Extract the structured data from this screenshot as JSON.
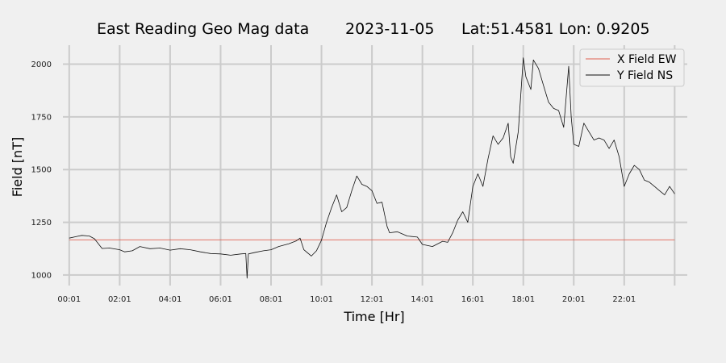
{
  "chart_data": {
    "type": "line",
    "title": {
      "station": "East Reading Geo Mag data",
      "date": "2023-11-05",
      "location": "Lat:51.4581  Lon: 0.9205"
    },
    "xlabel": "Time  [Hr]",
    "ylabel": "Field  [nT]",
    "xlim": [
      -0.25,
      24.5
    ],
    "ylim": [
      950,
      2090
    ],
    "x_ticks": [
      {
        "value": 0,
        "label": "00:01"
      },
      {
        "value": 2,
        "label": "02:01"
      },
      {
        "value": 4,
        "label": "04:01"
      },
      {
        "value": 6,
        "label": "06:01"
      },
      {
        "value": 8,
        "label": "08:01"
      },
      {
        "value": 10,
        "label": "10:01"
      },
      {
        "value": 12,
        "label": "12:01"
      },
      {
        "value": 14,
        "label": "14:01"
      },
      {
        "value": 16,
        "label": "16:01"
      },
      {
        "value": 18,
        "label": "18:01"
      },
      {
        "value": 20,
        "label": "20:01"
      },
      {
        "value": 22,
        "label": "22:01"
      }
    ],
    "x_gridlines": [
      0,
      2,
      4,
      6,
      8,
      10,
      12,
      14,
      16,
      18,
      20,
      22,
      24
    ],
    "y_ticks": [
      1000,
      1250,
      1500,
      1750,
      2000
    ],
    "grid": true,
    "legend": "top-right",
    "series": [
      {
        "name": "X Field EW",
        "color": "#e06050",
        "points": [
          [
            0,
            1167
          ],
          [
            24,
            1167
          ]
        ]
      },
      {
        "name": "Y Field NS",
        "color": "#111111",
        "points": [
          [
            0.0,
            1175
          ],
          [
            0.3,
            1183
          ],
          [
            0.5,
            1188
          ],
          [
            0.8,
            1185
          ],
          [
            1.0,
            1172
          ],
          [
            1.3,
            1126
          ],
          [
            1.6,
            1128
          ],
          [
            2.0,
            1120
          ],
          [
            2.2,
            1110
          ],
          [
            2.5,
            1115
          ],
          [
            2.8,
            1135
          ],
          [
            3.2,
            1125
          ],
          [
            3.6,
            1128
          ],
          [
            4.0,
            1118
          ],
          [
            4.4,
            1125
          ],
          [
            4.8,
            1120
          ],
          [
            5.2,
            1110
          ],
          [
            5.6,
            1102
          ],
          [
            6.0,
            1100
          ],
          [
            6.4,
            1094
          ],
          [
            6.8,
            1100
          ],
          [
            7.0,
            1102
          ],
          [
            7.05,
            985
          ],
          [
            7.1,
            1100
          ],
          [
            7.4,
            1108
          ],
          [
            7.7,
            1115
          ],
          [
            8.0,
            1120
          ],
          [
            8.3,
            1135
          ],
          [
            8.7,
            1148
          ],
          [
            9.0,
            1162
          ],
          [
            9.15,
            1175
          ],
          [
            9.3,
            1120
          ],
          [
            9.6,
            1090
          ],
          [
            9.8,
            1115
          ],
          [
            10.0,
            1165
          ],
          [
            10.2,
            1250
          ],
          [
            10.4,
            1320
          ],
          [
            10.6,
            1380
          ],
          [
            10.8,
            1300
          ],
          [
            11.0,
            1320
          ],
          [
            11.2,
            1400
          ],
          [
            11.4,
            1470
          ],
          [
            11.6,
            1430
          ],
          [
            11.8,
            1420
          ],
          [
            12.0,
            1400
          ],
          [
            12.2,
            1340
          ],
          [
            12.4,
            1345
          ],
          [
            12.6,
            1230
          ],
          [
            12.7,
            1200
          ],
          [
            13.0,
            1205
          ],
          [
            13.4,
            1185
          ],
          [
            13.8,
            1180
          ],
          [
            14.0,
            1145
          ],
          [
            14.4,
            1135
          ],
          [
            14.8,
            1160
          ],
          [
            15.0,
            1155
          ],
          [
            15.2,
            1200
          ],
          [
            15.4,
            1260
          ],
          [
            15.6,
            1300
          ],
          [
            15.8,
            1250
          ],
          [
            16.0,
            1420
          ],
          [
            16.2,
            1480
          ],
          [
            16.4,
            1420
          ],
          [
            16.6,
            1550
          ],
          [
            16.8,
            1660
          ],
          [
            17.0,
            1620
          ],
          [
            17.2,
            1650
          ],
          [
            17.4,
            1720
          ],
          [
            17.5,
            1560
          ],
          [
            17.6,
            1530
          ],
          [
            17.8,
            1680
          ],
          [
            18.0,
            2030
          ],
          [
            18.1,
            1940
          ],
          [
            18.3,
            1880
          ],
          [
            18.4,
            2020
          ],
          [
            18.6,
            1980
          ],
          [
            18.8,
            1900
          ],
          [
            19.0,
            1820
          ],
          [
            19.2,
            1790
          ],
          [
            19.4,
            1780
          ],
          [
            19.6,
            1700
          ],
          [
            19.8,
            1990
          ],
          [
            19.9,
            1750
          ],
          [
            20.0,
            1620
          ],
          [
            20.2,
            1610
          ],
          [
            20.4,
            1720
          ],
          [
            20.6,
            1680
          ],
          [
            20.8,
            1640
          ],
          [
            21.0,
            1650
          ],
          [
            21.2,
            1640
          ],
          [
            21.4,
            1600
          ],
          [
            21.6,
            1640
          ],
          [
            21.8,
            1560
          ],
          [
            22.0,
            1420
          ],
          [
            22.2,
            1480
          ],
          [
            22.4,
            1520
          ],
          [
            22.6,
            1500
          ],
          [
            22.8,
            1450
          ],
          [
            23.0,
            1440
          ],
          [
            23.2,
            1420
          ],
          [
            23.4,
            1400
          ],
          [
            23.6,
            1380
          ],
          [
            23.8,
            1420
          ],
          [
            24.0,
            1385
          ]
        ]
      }
    ]
  }
}
